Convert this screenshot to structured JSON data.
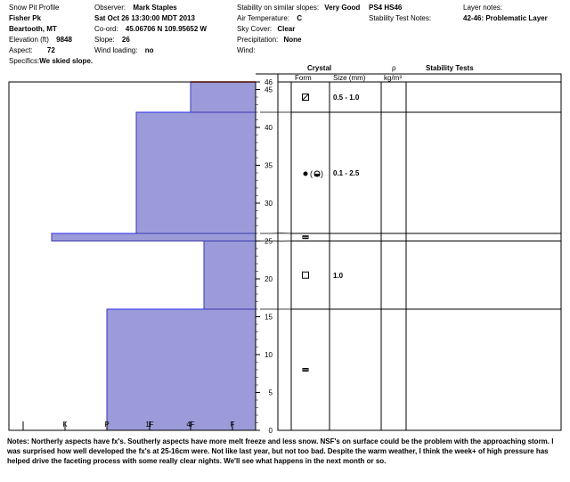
{
  "header": {
    "title": "Snow Pit Profile",
    "location": "Fisher Pk",
    "region": "Beartooth, MT",
    "elevation_label": "Elevation (ft)",
    "elevation": "9848",
    "aspect_label": "Aspect:",
    "aspect": "72",
    "specifics_label": "Specifics:",
    "specifics": "We skied slope.",
    "observer_label": "Observer:",
    "observer": "Mark Staples",
    "datetime": "Sat Oct 26 13:30:00 MDT 2013",
    "coord_label": "Co-ord:",
    "coord": "45.06706 N 109.95652 W",
    "slope_label": "Slope:",
    "slope": "26",
    "wind_loading_label": "Wind loading:",
    "wind_loading": "no",
    "stability_label": "Stability on similar slopes:",
    "stability": "Very Good",
    "air_temp_label": "Air Temperature:",
    "air_temp": "C",
    "sky_label": "Sky Cover:",
    "sky": "Clear",
    "precip_label": "Precipitation:",
    "precip": "None",
    "wind_label": "Wind:",
    "test_code": "PS4 HS46",
    "layer_notes_label": "Layer notes:",
    "stability_test_notes_label": "Stability Test Notes:",
    "layer_note": "42-46: Problematic Layer"
  },
  "columns": {
    "crystal": "Crystal",
    "form": "Form",
    "size": "Size (mm)",
    "rho": "ρ",
    "rho_unit": "kg/m³",
    "stability_tests": "Stability Tests"
  },
  "chart_data": {
    "type": "bar",
    "orientation": "horizontal",
    "y_axis": {
      "min": 0,
      "max": 46,
      "ticks": [
        0,
        5,
        10,
        15,
        20,
        25,
        30,
        35,
        40,
        45,
        46
      ]
    },
    "x_axis": {
      "categories": [
        "I",
        "K",
        "P",
        "1F",
        "4F",
        "F"
      ]
    },
    "hardness_layers": [
      {
        "bottom": 0,
        "top": 16,
        "hardness": "P"
      },
      {
        "bottom": 16,
        "top": 25,
        "hardness": "4F+"
      },
      {
        "bottom": 25,
        "top": 26,
        "hardness": "K-"
      },
      {
        "bottom": 26,
        "top": 42,
        "hardness": "1F-"
      },
      {
        "bottom": 42,
        "top": 46,
        "hardness": "4F"
      }
    ],
    "problem_layer_top": 46,
    "crystal_layers": [
      {
        "bottom": 42,
        "top": 46,
        "form": "faceted-rounded",
        "size": "0.5 - 1.0"
      },
      {
        "bottom": 26,
        "top": 42,
        "form": "rounded-faceted",
        "size": "0.1 - 2.5"
      },
      {
        "bottom": 25,
        "top": 26,
        "form": "crust",
        "size": ""
      },
      {
        "bottom": 16,
        "top": 25,
        "form": "faceted",
        "size": "1.0"
      },
      {
        "bottom": 0,
        "top": 16,
        "form": "crust",
        "size": ""
      }
    ]
  },
  "notes": {
    "label": "Notes:",
    "text": "Northerly aspects have fx's. Southerly aspects have more melt freeze and less snow. NSF's on surface could be the problem with the approaching storm. I was surprised how well developed the fx's at 25-16cm were. Not like last year, but not too bad. Despite the warm weather, I think the week+ of high pressure has helped drive the faceting process with some really clear nights. We'll see what happens in the next month or so."
  }
}
